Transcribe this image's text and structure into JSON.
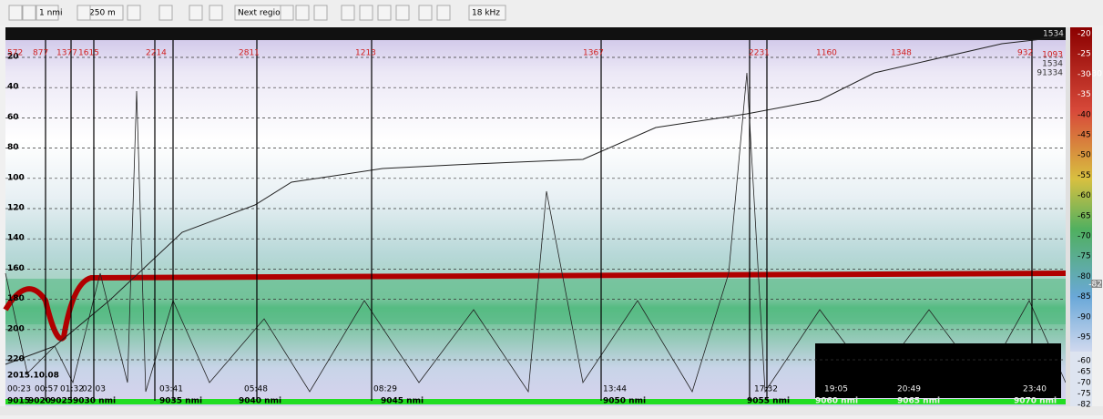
{
  "toolbar": {
    "buttons": [
      "1 nmi",
      "250 m",
      "Next region",
      "18 kHz"
    ]
  },
  "echogram": {
    "depth_labels": [
      "20",
      "40",
      "60",
      "80",
      "100",
      "120",
      "140",
      "160",
      "180",
      "200",
      "220"
    ],
    "region_labels": [
      "572",
      "877",
      "1377",
      "1615",
      "2214",
      "2811",
      "1213",
      "1367",
      "2231",
      "1160",
      "1348",
      "932"
    ],
    "corner_label": "1534",
    "right_labels": [
      "1093",
      "1534",
      "91334"
    ],
    "date": "2015.10.08",
    "time_labels": [
      "00:23",
      "00:57",
      "01:32",
      "02:03",
      "03:41",
      "05:48",
      "08:29",
      "13:44",
      "17:32",
      "19:05",
      "20:49",
      "23:40"
    ],
    "distance_labels": [
      "9015",
      "9020",
      "9025",
      "9030 nmi",
      "9035 nmi",
      "9040 nmi",
      "9045 nmi",
      "9050 nmi",
      "9055 nmi",
      "9060 nmi",
      "9065 nmi",
      "9070 nmi"
    ]
  },
  "color_scale": {
    "labels": [
      "-20",
      "-25",
      "-30",
      "-35",
      "-40",
      "-45",
      "-50",
      "-55",
      "-60",
      "-65",
      "-70",
      "-75",
      "-80",
      "-85",
      "-90",
      "-95"
    ],
    "upper_marker": "-30",
    "lower_marker": "-82",
    "lower_labels": [
      "-60",
      "-65",
      "-70",
      "-75",
      "-82"
    ]
  }
}
